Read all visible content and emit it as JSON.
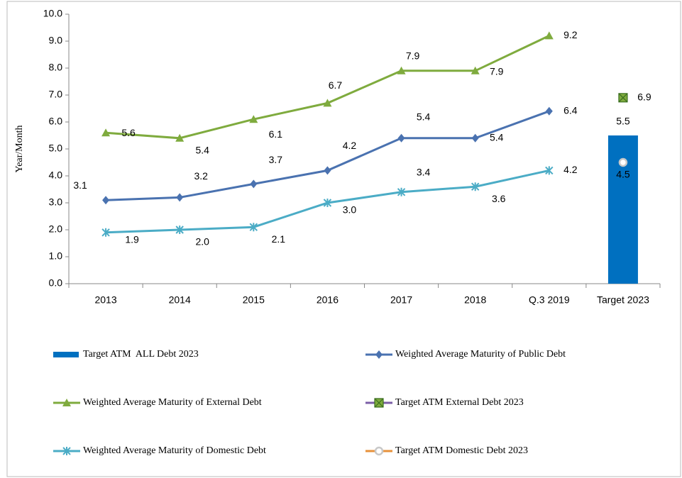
{
  "chart_data": {
    "type": "line",
    "y_label": "Year/Month",
    "categories": [
      "2013",
      "2014",
      "2015",
      "2016",
      "2017",
      "2018",
      "Q.3 2019",
      "Target 2023"
    ],
    "ylim": [
      0,
      10
    ],
    "yticks": [
      {
        "value": 0,
        "label": "0.0"
      },
      {
        "value": 1,
        "label": "1.0"
      },
      {
        "value": 2,
        "label": "2.0"
      },
      {
        "value": 3,
        "label": "3.0"
      },
      {
        "value": 4,
        "label": "4.0"
      },
      {
        "value": 5,
        "label": "5.0"
      },
      {
        "value": 6,
        "label": "6.0"
      },
      {
        "value": 7,
        "label": "7.0"
      },
      {
        "value": 8,
        "label": "8.0"
      },
      {
        "value": 9,
        "label": "9.0"
      },
      {
        "value": 10,
        "label": "10.0"
      }
    ],
    "series": [
      {
        "name": "Target ATM  ALL Debt 2023",
        "type": "bar",
        "color": "#0070c0",
        "values": [
          null,
          null,
          null,
          null,
          null,
          null,
          null,
          5.5
        ],
        "value_labels": [
          null,
          null,
          null,
          null,
          null,
          null,
          null,
          "5.5"
        ]
      },
      {
        "name": "Weighted Average Maturity of Public Debt",
        "type": "line",
        "marker": "diamond",
        "color": "#4a72b0",
        "values": [
          3.1,
          3.2,
          3.7,
          4.2,
          5.4,
          5.4,
          6.4,
          null
        ],
        "value_labels": [
          "3.1",
          "3.2",
          "3.7",
          "4.2",
          "5.4",
          "5.4",
          "6.4",
          null
        ]
      },
      {
        "name": "Weighted Average Maturity of External Debt",
        "type": "line",
        "marker": "triangle",
        "color": "#7fab3e",
        "values": [
          5.6,
          5.4,
          6.1,
          6.7,
          7.9,
          7.9,
          9.2,
          null
        ],
        "value_labels": [
          "5.6",
          "5.4",
          "6.1",
          "6.7",
          "7.9",
          "7.9",
          "9.2",
          null
        ]
      },
      {
        "name": "Target ATM External Debt 2023",
        "type": "line",
        "marker": "boxx",
        "color": "#7b5ea7",
        "marker_color": "#7fab3e",
        "values": [
          null,
          null,
          null,
          null,
          null,
          null,
          null,
          6.9
        ],
        "value_labels": [
          null,
          null,
          null,
          null,
          null,
          null,
          null,
          "6.9"
        ]
      },
      {
        "name": "Weighted Average Maturity of Domestic Debt",
        "type": "line",
        "marker": "star",
        "color": "#4bacc6",
        "values": [
          1.9,
          2.0,
          2.1,
          3.0,
          3.4,
          3.6,
          4.2,
          null
        ],
        "value_labels": [
          "1.9",
          "2.0",
          "2.1",
          "3.0",
          "3.4",
          "3.6",
          "4.2",
          null
        ]
      },
      {
        "name": "Target ATM Domestic Debt 2023",
        "type": "line",
        "marker": "circle",
        "color": "#e7913a",
        "marker_color": "#c8c8c8",
        "values": [
          null,
          null,
          null,
          null,
          null,
          null,
          null,
          4.5
        ],
        "value_labels": [
          null,
          null,
          null,
          null,
          null,
          null,
          null,
          "4.5"
        ]
      }
    ]
  }
}
